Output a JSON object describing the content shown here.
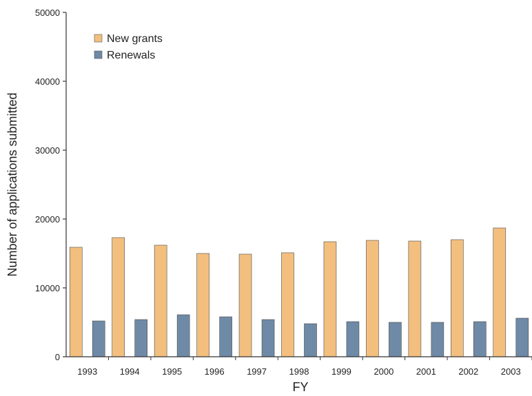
{
  "chart_data": {
    "type": "bar",
    "title": "",
    "xlabel": "FY",
    "ylabel": "Number of applications submitted",
    "categories": [
      "1993",
      "1994",
      "1995",
      "1996",
      "1997",
      "1998",
      "1999",
      "2000",
      "2001",
      "2002",
      "2003"
    ],
    "series": [
      {
        "name": "New grants",
        "color": "#F3BF7F",
        "values": [
          15900,
          17300,
          16200,
          15000,
          14900,
          15100,
          16700,
          16900,
          16800,
          17000,
          18700
        ]
      },
      {
        "name": "Renewals",
        "color": "#6F8AA6",
        "values": [
          5200,
          5400,
          6100,
          5800,
          5400,
          4800,
          5100,
          5000,
          5000,
          5100,
          5600
        ]
      }
    ],
    "ylim": [
      0,
      50000
    ],
    "yticks": [
      "0",
      "10000",
      "20000",
      "30000",
      "40000",
      "50000"
    ],
    "grid": false,
    "legend_position": "top-left"
  }
}
